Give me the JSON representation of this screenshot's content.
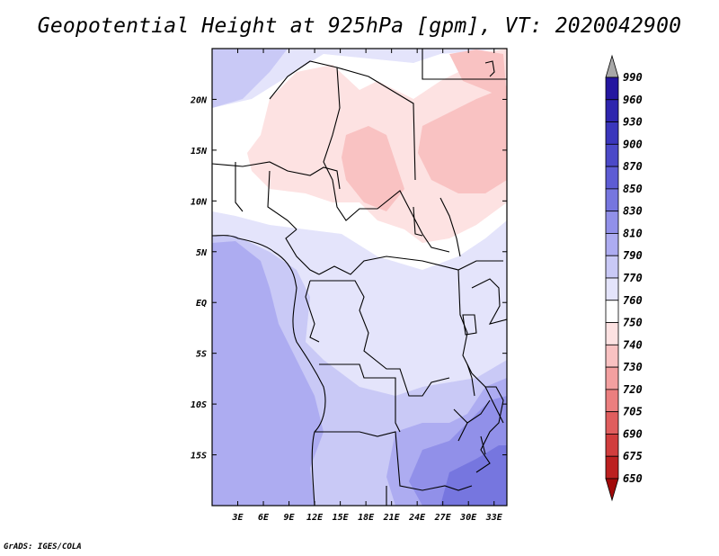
{
  "title": "Geopotential Height at 925hPa [gpm], VT: 2020042900",
  "footer": "GrADS: IGES/COLA",
  "map": {
    "lon_range": [
      0,
      34.5
    ],
    "lat_range": [
      -20,
      25
    ],
    "x_ticks": [
      "3E",
      "6E",
      "9E",
      "12E",
      "15E",
      "18E",
      "21E",
      "24E",
      "27E",
      "30E",
      "33E"
    ],
    "x_tick_values": [
      3,
      6,
      9,
      12,
      15,
      18,
      21,
      24,
      27,
      30,
      33
    ],
    "y_ticks": [
      "15S",
      "10S",
      "5S",
      "EQ",
      "5N",
      "10N",
      "15N",
      "20N"
    ],
    "y_tick_values": [
      -15,
      -10,
      -5,
      0,
      5,
      10,
      15,
      20
    ]
  },
  "colorbar": {
    "levels": [
      "990",
      "960",
      "930",
      "900",
      "870",
      "850",
      "830",
      "810",
      "790",
      "770",
      "760",
      "750",
      "740",
      "730",
      "720",
      "705",
      "690",
      "675",
      "650"
    ],
    "colors": [
      "#1a0f8c",
      "#2416a0",
      "#2e25ae",
      "#3a36bc",
      "#4b49c8",
      "#5d5cd4",
      "#7676df",
      "#9190e9",
      "#adacf1",
      "#c9c9f6",
      "#e4e4fb",
      "#ffffff",
      "#fde2e2",
      "#f9c2c2",
      "#f3a0a0",
      "#eb7f7f",
      "#e05e5e",
      "#d13d3d",
      "#bc2020",
      "#a10a0a"
    ]
  }
}
